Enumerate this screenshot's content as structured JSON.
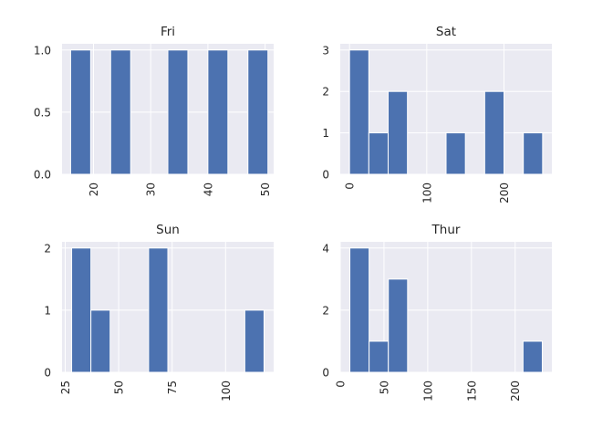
{
  "chart_data": [
    {
      "type": "bar",
      "title": "Fri",
      "bins": [
        [
          16,
          19.5
        ],
        [
          23,
          26.5
        ],
        [
          33,
          36.5
        ],
        [
          40,
          43.5
        ],
        [
          47,
          50.5
        ]
      ],
      "values": [
        1,
        1,
        1,
        1,
        1
      ],
      "xlim": [
        14.5,
        51.5
      ],
      "ylim": [
        0,
        1.05
      ],
      "xticks": [
        20,
        30,
        40,
        50
      ],
      "xtick_labels": [
        "20",
        "30",
        "40",
        "50"
      ],
      "yticks": [
        0,
        0.5,
        1.0
      ],
      "ytick_labels": [
        "0.0",
        "0.5",
        "1.0"
      ],
      "xlabel": "",
      "ylabel": "",
      "grid": true
    },
    {
      "type": "bar",
      "title": "Sat",
      "bins": [
        [
          0,
          25
        ],
        [
          25,
          50
        ],
        [
          50,
          75
        ],
        [
          75,
          100
        ],
        [
          100,
          125
        ],
        [
          125,
          150
        ],
        [
          150,
          175
        ],
        [
          175,
          200
        ],
        [
          200,
          225
        ],
        [
          225,
          250
        ]
      ],
      "values": [
        3,
        1,
        2,
        0,
        0,
        1,
        0,
        2,
        0,
        1
      ],
      "xlim": [
        -12,
        262
      ],
      "ylim": [
        0,
        3.15
      ],
      "xticks": [
        0,
        100,
        200
      ],
      "xtick_labels": [
        "0",
        "100",
        "200"
      ],
      "yticks": [
        0,
        1,
        2,
        3
      ],
      "ytick_labels": [
        "0",
        "1",
        "2",
        "3"
      ],
      "xlabel": "",
      "ylabel": "",
      "grid": true
    },
    {
      "type": "bar",
      "title": "Sun",
      "bins": [
        [
          28,
          37
        ],
        [
          37,
          46
        ],
        [
          46,
          55
        ],
        [
          55,
          64
        ],
        [
          64,
          73
        ],
        [
          73,
          82
        ],
        [
          82,
          91
        ],
        [
          91,
          100
        ],
        [
          100,
          109
        ],
        [
          109,
          118
        ]
      ],
      "values": [
        2,
        1,
        0,
        0,
        2,
        0,
        0,
        0,
        0,
        1
      ],
      "xlim": [
        23.5,
        122.5
      ],
      "ylim": [
        0,
        2.1
      ],
      "xticks": [
        25,
        50,
        75,
        100
      ],
      "xtick_labels": [
        "25",
        "50",
        "75",
        "100"
      ],
      "yticks": [
        0,
        1,
        2
      ],
      "ytick_labels": [
        "0",
        "1",
        "2"
      ],
      "xlabel": "",
      "ylabel": "",
      "grid": true
    },
    {
      "type": "bar",
      "title": "Thur",
      "bins": [
        [
          11,
          33
        ],
        [
          33,
          55
        ],
        [
          55,
          77
        ],
        [
          77,
          99
        ],
        [
          99,
          121
        ],
        [
          121,
          143
        ],
        [
          143,
          165
        ],
        [
          165,
          187
        ],
        [
          187,
          209
        ],
        [
          209,
          231
        ]
      ],
      "values": [
        4,
        1,
        3,
        0,
        0,
        0,
        0,
        0,
        0,
        1
      ],
      "xlim": [
        0,
        242
      ],
      "ylim": [
        0,
        4.2
      ],
      "xticks": [
        0,
        50,
        100,
        150,
        200
      ],
      "xtick_labels": [
        "0",
        "50",
        "100",
        "150",
        "200"
      ],
      "yticks": [
        0,
        2,
        4
      ],
      "ytick_labels": [
        "0",
        "2",
        "4"
      ],
      "xlabel": "",
      "ylabel": "",
      "grid": true
    }
  ],
  "colors": {
    "bar": "#4c72b0",
    "panel_background": "#eaeaf2",
    "grid": "#ffffff",
    "text": "#262626"
  }
}
